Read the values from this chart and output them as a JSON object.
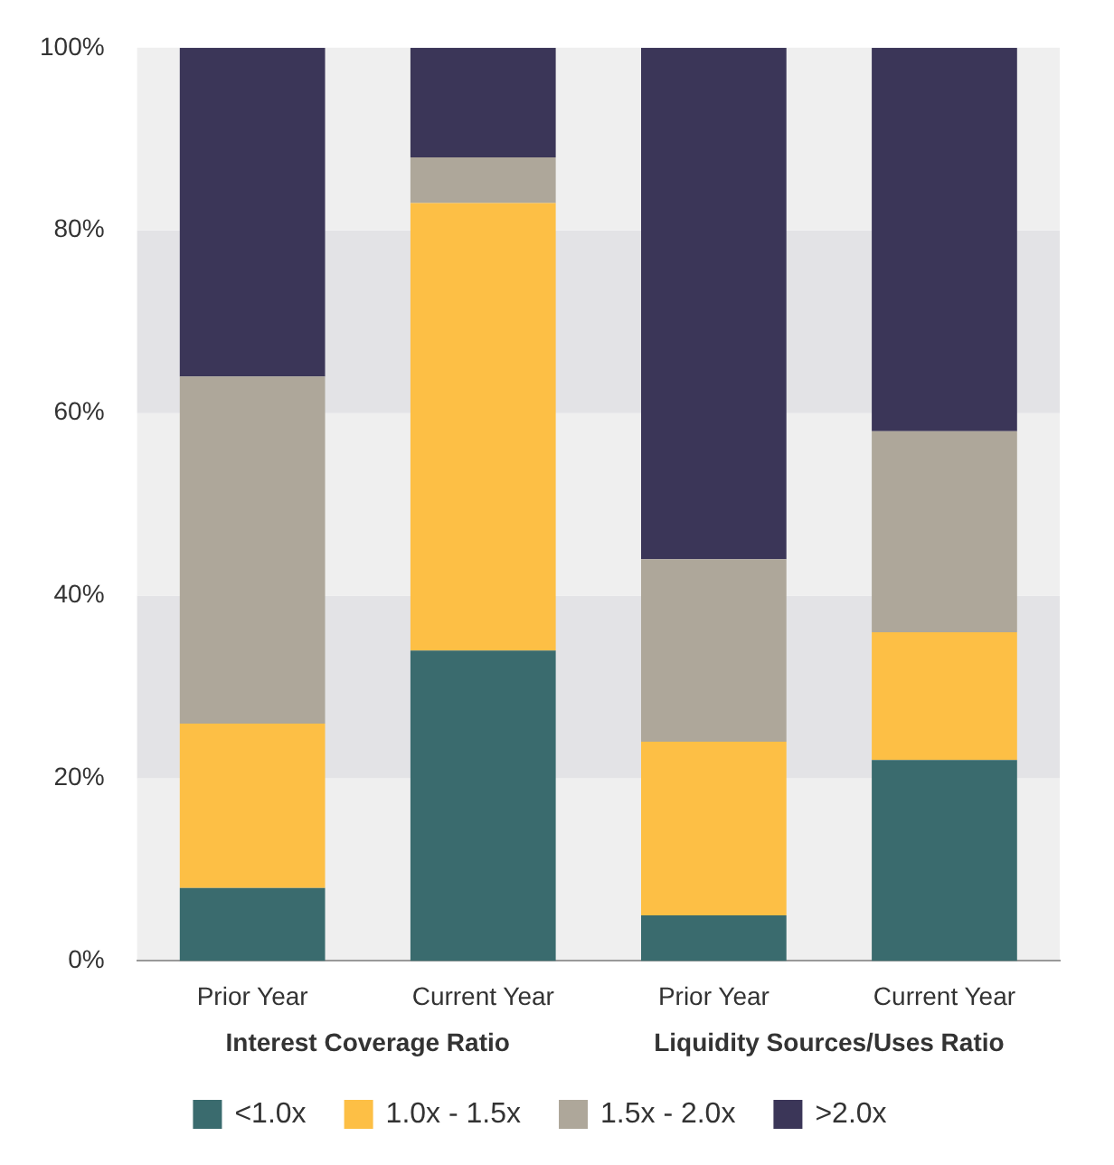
{
  "chart_data": {
    "type": "bar",
    "stacked": true,
    "categories": [
      "Prior Year",
      "Current Year",
      "Prior Year",
      "Current Year"
    ],
    "series": [
      {
        "name": "<1.0x",
        "color": "#3a6b6e",
        "values": [
          8,
          34,
          5,
          22
        ]
      },
      {
        "name": "1.0x - 1.5x",
        "color": "#fdbf45",
        "values": [
          18,
          49,
          19,
          14
        ]
      },
      {
        "name": "1.5x - 2.0x",
        "color": "#aea79a",
        "values": [
          38,
          5,
          20,
          22
        ]
      },
      {
        "name": ">2.0x",
        "color": "#3b3658",
        "values": [
          36,
          12,
          56,
          42
        ]
      }
    ],
    "ylim": [
      0,
      100
    ],
    "yticks": [
      {
        "value": 0,
        "label": "0%"
      },
      {
        "value": 20,
        "label": "20%"
      },
      {
        "value": 40,
        "label": "40%"
      },
      {
        "value": 60,
        "label": "60%"
      },
      {
        "value": 80,
        "label": "80%"
      },
      {
        "value": 100,
        "label": "100%"
      }
    ],
    "annotations": [
      "Interest Coverage Ratio",
      "Liquidity Sources/Uses Ratio"
    ],
    "legend": "bottom"
  }
}
